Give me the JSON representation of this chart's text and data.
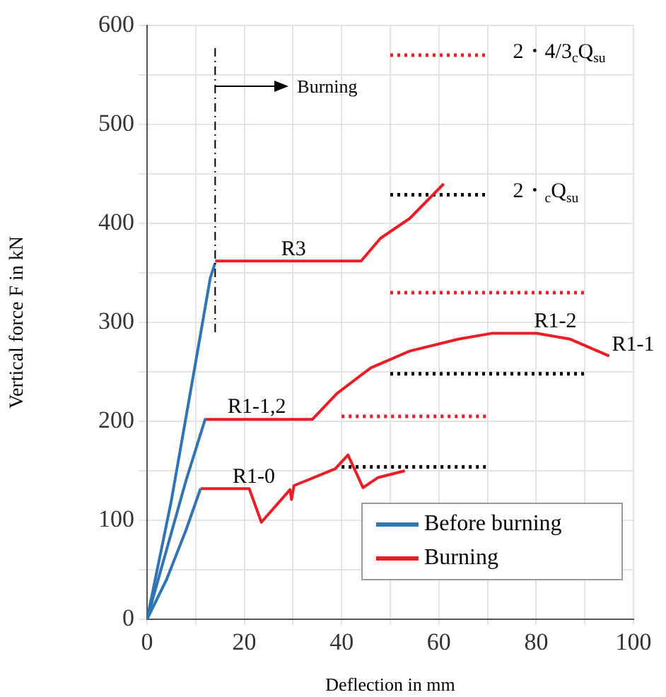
{
  "chart_data": {
    "type": "line",
    "xlabel": "Deflection in mm",
    "ylabel": "Vertical force F in kN",
    "xlim": [
      0,
      100
    ],
    "ylim": [
      0,
      600
    ],
    "xticks": [
      0,
      {
        "value": 10,
        "label": null
      },
      20,
      {
        "value": 30,
        "label": null
      },
      40,
      {
        "value": 50,
        "label": null
      },
      60,
      {
        "value": 70,
        "label": null
      },
      80,
      {
        "value": 90,
        "label": null
      },
      100
    ],
    "yticks": [
      0,
      {
        "value": 50,
        "label": null
      },
      100,
      {
        "value": 150,
        "label": null
      },
      200,
      {
        "value": 250,
        "label": null
      },
      300,
      {
        "value": 350,
        "label": null
      },
      400,
      {
        "value": 450,
        "label": null
      },
      500,
      {
        "value": 550,
        "label": null
      },
      600
    ],
    "grid": true,
    "legend": "bottom right",
    "marker": "none",
    "series": [
      {
        "name": "Before burning",
        "color": "#2e75b6",
        "x": [
          0,
          5,
          10,
          13,
          14
        ],
        "values": [
          0,
          120,
          260,
          345,
          360
        ]
      },
      {
        "color": "#2e75b6",
        "x": [
          0,
          4,
          8,
          12
        ],
        "values": [
          0,
          70,
          140,
          203
        ]
      },
      {
        "color": "#2e75b6",
        "x": [
          0,
          4,
          8,
          11
        ],
        "values": [
          0,
          40,
          90,
          132
        ]
      },
      {
        "name": "Burning",
        "color": "#ee1c25",
        "x": [
          14,
          44,
          48,
          54,
          61
        ],
        "values": [
          362,
          362,
          385,
          405,
          440
        ]
      },
      {
        "color": "#ee1c25",
        "x": [
          12,
          34,
          39,
          46,
          54,
          64,
          71,
          80,
          87,
          95
        ],
        "values": [
          202,
          202,
          228,
          254,
          271,
          283,
          289,
          289,
          283,
          266
        ]
      },
      {
        "color": "#ee1c25",
        "x": [
          11,
          21,
          23.5,
          29.4,
          29.7,
          30.2,
          38.7,
          41.3,
          44.4,
          47.4,
          53
        ],
        "values": [
          132,
          132,
          98,
          131,
          121,
          135,
          152,
          166,
          133,
          143,
          150
        ]
      },
      {
        "color": "#ee1c25",
        "line_style": "dotted",
        "x": [
          50,
          70
        ],
        "values": [
          570,
          570
        ]
      },
      {
        "color": "#000000",
        "line_style": "dotted",
        "x": [
          50,
          70
        ],
        "values": [
          429,
          429
        ]
      },
      {
        "color": "#ee1c25",
        "line_style": "dotted",
        "x": [
          50,
          90
        ],
        "values": [
          330,
          330
        ]
      },
      {
        "color": "#000000",
        "line_style": "dotted",
        "x": [
          50,
          90
        ],
        "values": [
          248,
          248
        ]
      },
      {
        "color": "#ee1c25",
        "line_style": "dotted",
        "x": [
          40,
          70
        ],
        "values": [
          205,
          205
        ]
      },
      {
        "color": "#000000",
        "line_style": "dotted",
        "x": [
          40,
          70
        ],
        "values": [
          154,
          154
        ]
      }
    ],
    "ref_lines": [
      {
        "axis": "x",
        "value": 14,
        "label": "Burning",
        "color": "#000000",
        "line_style": "dashed"
      }
    ],
    "annotations": [
      {
        "text": "R3",
        "x": 27,
        "y": 362
      },
      {
        "text": "R1-1,2",
        "x": 16,
        "y": 203
      },
      {
        "text": "R1-0",
        "x": 17,
        "y": 132
      },
      {
        "text": "R1-2",
        "x": 79,
        "y": 289
      },
      {
        "text": "R1-1",
        "x": 95,
        "y": 266
      },
      {
        "text": "2・4/3$_{c}$Q$_{su}$",
        "x": 70,
        "y": 570
      },
      {
        "text": "2・$_{c}$Q$_{su}$",
        "x": 70,
        "y": 429
      }
    ]
  }
}
